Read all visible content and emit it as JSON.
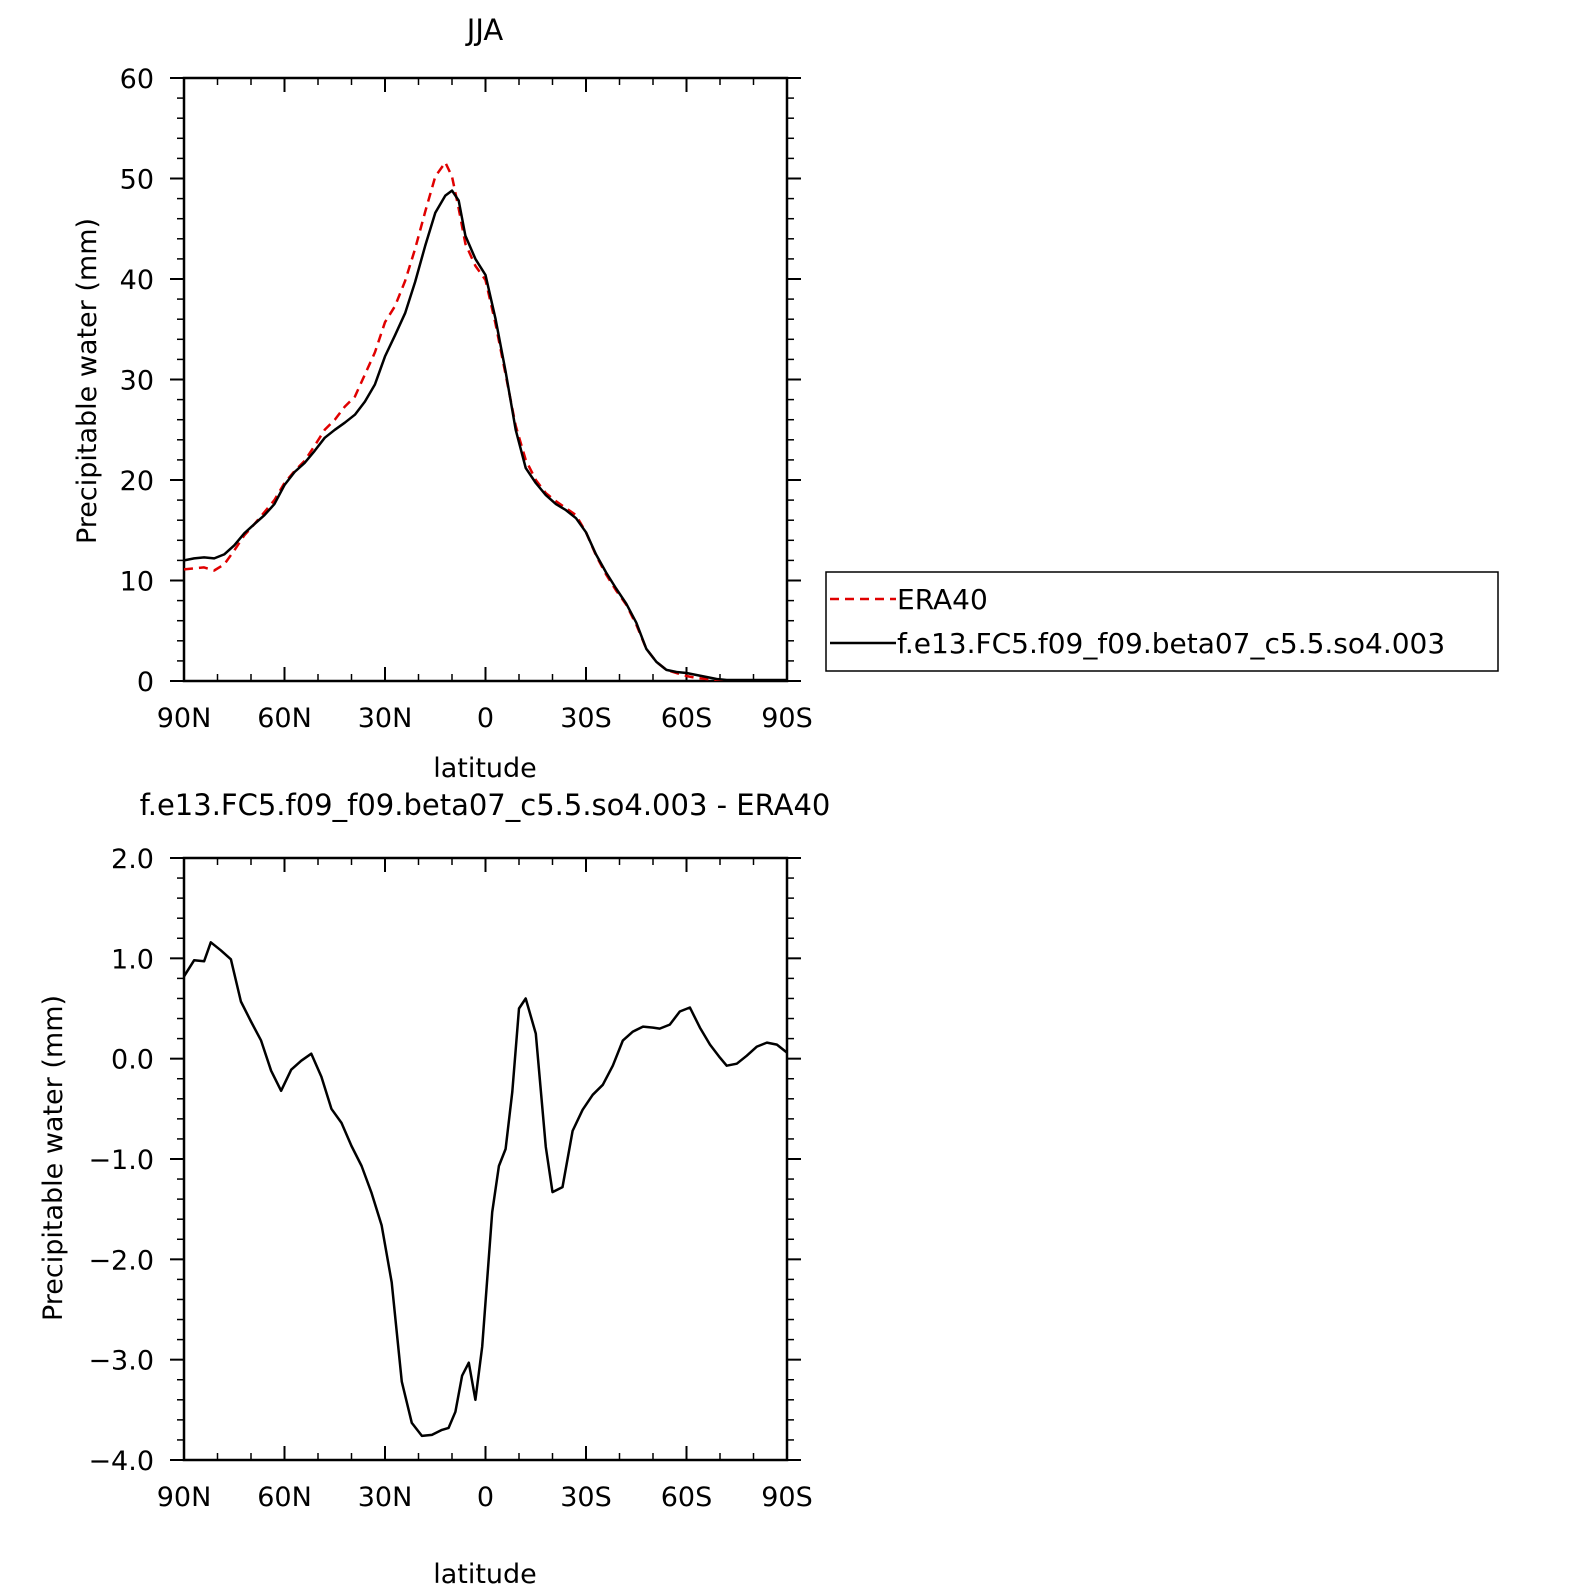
{
  "chart_data": [
    {
      "type": "line",
      "title": "JJA",
      "xlabel": "latitude",
      "ylabel": "Precipitable water (mm)",
      "xlim": [
        90,
        -90
      ],
      "ylim": [
        0,
        60
      ],
      "xticks": [
        90,
        60,
        30,
        0,
        -30,
        -60,
        -90
      ],
      "xtick_labels": [
        "90N",
        "60N",
        "30N",
        "0",
        "30S",
        "60S",
        "90S"
      ],
      "yticks": [
        0,
        10,
        20,
        30,
        40,
        50,
        60
      ],
      "ytick_labels": [
        "0",
        "10",
        "20",
        "30",
        "40",
        "50",
        "60"
      ],
      "legend_position": "right",
      "series": [
        {
          "name": "ERA40",
          "color": "#e00000",
          "dash": "dashed",
          "x": [
            90,
            87,
            84,
            81,
            78,
            75,
            72,
            69,
            66,
            63,
            60,
            57,
            54,
            51,
            48,
            45,
            42,
            39,
            36,
            33,
            30,
            27,
            24,
            21,
            18,
            15,
            12,
            10,
            8,
            6,
            3,
            0,
            -3,
            -6,
            -9,
            -12,
            -15,
            -18,
            -21,
            -24,
            -27,
            -30,
            -33,
            -36,
            -39,
            -42,
            -45,
            -48,
            -51,
            -54,
            -57,
            -60,
            -63,
            -66,
            -69,
            -72,
            -75,
            -78,
            -81,
            -84,
            -87,
            -90
          ],
          "y": [
            11.1,
            11.2,
            11.3,
            11.0,
            11.6,
            13.0,
            14.5,
            15.6,
            16.8,
            18.0,
            19.7,
            20.9,
            21.9,
            23.4,
            25.0,
            26.0,
            27.3,
            28.3,
            30.5,
            32.7,
            35.7,
            37.3,
            39.8,
            43.0,
            46.7,
            50.2,
            51.6,
            50.2,
            47.0,
            43.5,
            41.3,
            39.9,
            35.5,
            30.5,
            25.4,
            22.0,
            20.0,
            18.7,
            17.9,
            17.2,
            16.5,
            14.8,
            12.5,
            10.6,
            9.0,
            7.6,
            5.6,
            3.2,
            1.9,
            1.1,
            0.8,
            0.5,
            0.3,
            0.2,
            0.1,
            0.1,
            0.0,
            0.0,
            0.0,
            0.0,
            0.0,
            0.0
          ]
        },
        {
          "name": "f.e13.FC5.f09_f09.beta07_c5.5.so4.003",
          "color": "#000000",
          "dash": "solid",
          "x": [
            90,
            87,
            84,
            81,
            78,
            75,
            72,
            69,
            66,
            63,
            60,
            57,
            54,
            51,
            48,
            45,
            42,
            39,
            36,
            33,
            30,
            27,
            24,
            21,
            18,
            15,
            12,
            10,
            8,
            6,
            3,
            0,
            -3,
            -6,
            -9,
            -12,
            -15,
            -18,
            -21,
            -24,
            -27,
            -30,
            -33,
            -36,
            -39,
            -42,
            -45,
            -48,
            -51,
            -54,
            -57,
            -60,
            -63,
            -66,
            -69,
            -72,
            -75,
            -78,
            -81,
            -84,
            -87,
            -90
          ],
          "y": [
            12.0,
            12.2,
            12.3,
            12.2,
            12.6,
            13.5,
            14.7,
            15.6,
            16.5,
            17.6,
            19.5,
            20.8,
            21.7,
            22.9,
            24.2,
            25.0,
            25.7,
            26.5,
            27.8,
            29.5,
            32.3,
            34.4,
            36.6,
            39.7,
            43.3,
            46.6,
            48.3,
            48.8,
            47.8,
            44.3,
            42.0,
            40.4,
            36.0,
            30.8,
            25.0,
            21.2,
            19.7,
            18.5,
            17.6,
            17.0,
            16.2,
            14.8,
            12.6,
            10.8,
            9.2,
            7.7,
            5.8,
            3.2,
            1.9,
            1.1,
            0.9,
            0.8,
            0.6,
            0.4,
            0.2,
            0.1,
            0.1,
            0.1,
            0.1,
            0.1,
            0.1,
            0.1
          ]
        }
      ]
    },
    {
      "type": "line",
      "title": "f.e13.FC5.f09_f09.beta07_c5.5.so4.003 - ERA40",
      "xlabel": "latitude",
      "ylabel": "Precipitable water (mm)",
      "xlim": [
        90,
        -90
      ],
      "ylim": [
        -4.0,
        2.0
      ],
      "xticks": [
        90,
        60,
        30,
        0,
        -30,
        -60,
        -90
      ],
      "xtick_labels": [
        "90N",
        "60N",
        "30N",
        "0",
        "30S",
        "60S",
        "90S"
      ],
      "yticks": [
        -4.0,
        -3.0,
        -2.0,
        -1.0,
        0.0,
        1.0,
        2.0
      ],
      "ytick_labels": [
        "−4.0",
        "−3.0",
        "−2.0",
        "−1.0",
        "0.0",
        "1.0",
        "2.0"
      ],
      "series": [
        {
          "color": "#000000",
          "dash": "solid",
          "x": [
            90,
            87,
            84,
            82,
            79,
            76,
            73,
            70,
            67,
            64,
            61,
            58,
            55,
            52,
            49,
            46,
            43,
            40,
            37,
            34,
            31,
            28,
            25,
            22,
            19,
            16,
            13,
            11,
            9,
            7,
            5,
            3,
            1,
            -2,
            -4,
            -6,
            -8,
            -10,
            -12,
            -15,
            -18,
            -20,
            -23,
            -26,
            -29,
            -32,
            -35,
            -38,
            -41,
            -44,
            -47,
            -50,
            -52,
            -55,
            -58,
            -61,
            -64,
            -67,
            -70,
            -72,
            -75,
            -78,
            -81,
            -84,
            -87,
            -90
          ],
          "y": [
            0.82,
            0.98,
            0.97,
            1.16,
            1.08,
            0.99,
            0.57,
            0.37,
            0.18,
            -0.12,
            -0.32,
            -0.11,
            -0.02,
            0.05,
            -0.18,
            -0.5,
            -0.64,
            -0.87,
            -1.07,
            -1.34,
            -1.66,
            -2.23,
            -3.22,
            -3.63,
            -3.76,
            -3.75,
            -3.7,
            -3.68,
            -3.52,
            -3.16,
            -3.03,
            -3.4,
            -2.87,
            -1.53,
            -1.07,
            -0.9,
            -0.33,
            0.5,
            0.6,
            0.25,
            -0.88,
            -1.33,
            -1.28,
            -0.72,
            -0.51,
            -0.36,
            -0.26,
            -0.07,
            0.18,
            0.27,
            0.32,
            0.31,
            0.3,
            0.34,
            0.47,
            0.51,
            0.31,
            0.14,
            0.01,
            -0.07,
            -0.05,
            0.03,
            0.12,
            0.16,
            0.14,
            0.06
          ]
        }
      ]
    }
  ]
}
